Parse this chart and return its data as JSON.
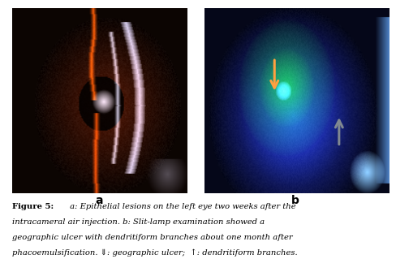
{
  "fig_width": 4.89,
  "fig_height": 3.19,
  "dpi": 100,
  "background_color": "#ffffff",
  "label_a": "a",
  "label_b": "b",
  "label_fontsize": 10,
  "label_fontweight": "bold",
  "caption_fontsize": 7.2,
  "caption_line1": " a: Epithelial lesions on the left eye two weeks after the",
  "caption_line2": "intracameral air injection. b: Slit-lamp examination showed a",
  "caption_line3": "geographic ulcer with dendritiform branches about one month after",
  "caption_line4": "phacoemulsification. ⇓: geographic ulcer;  ↑: dendritiform branches."
}
